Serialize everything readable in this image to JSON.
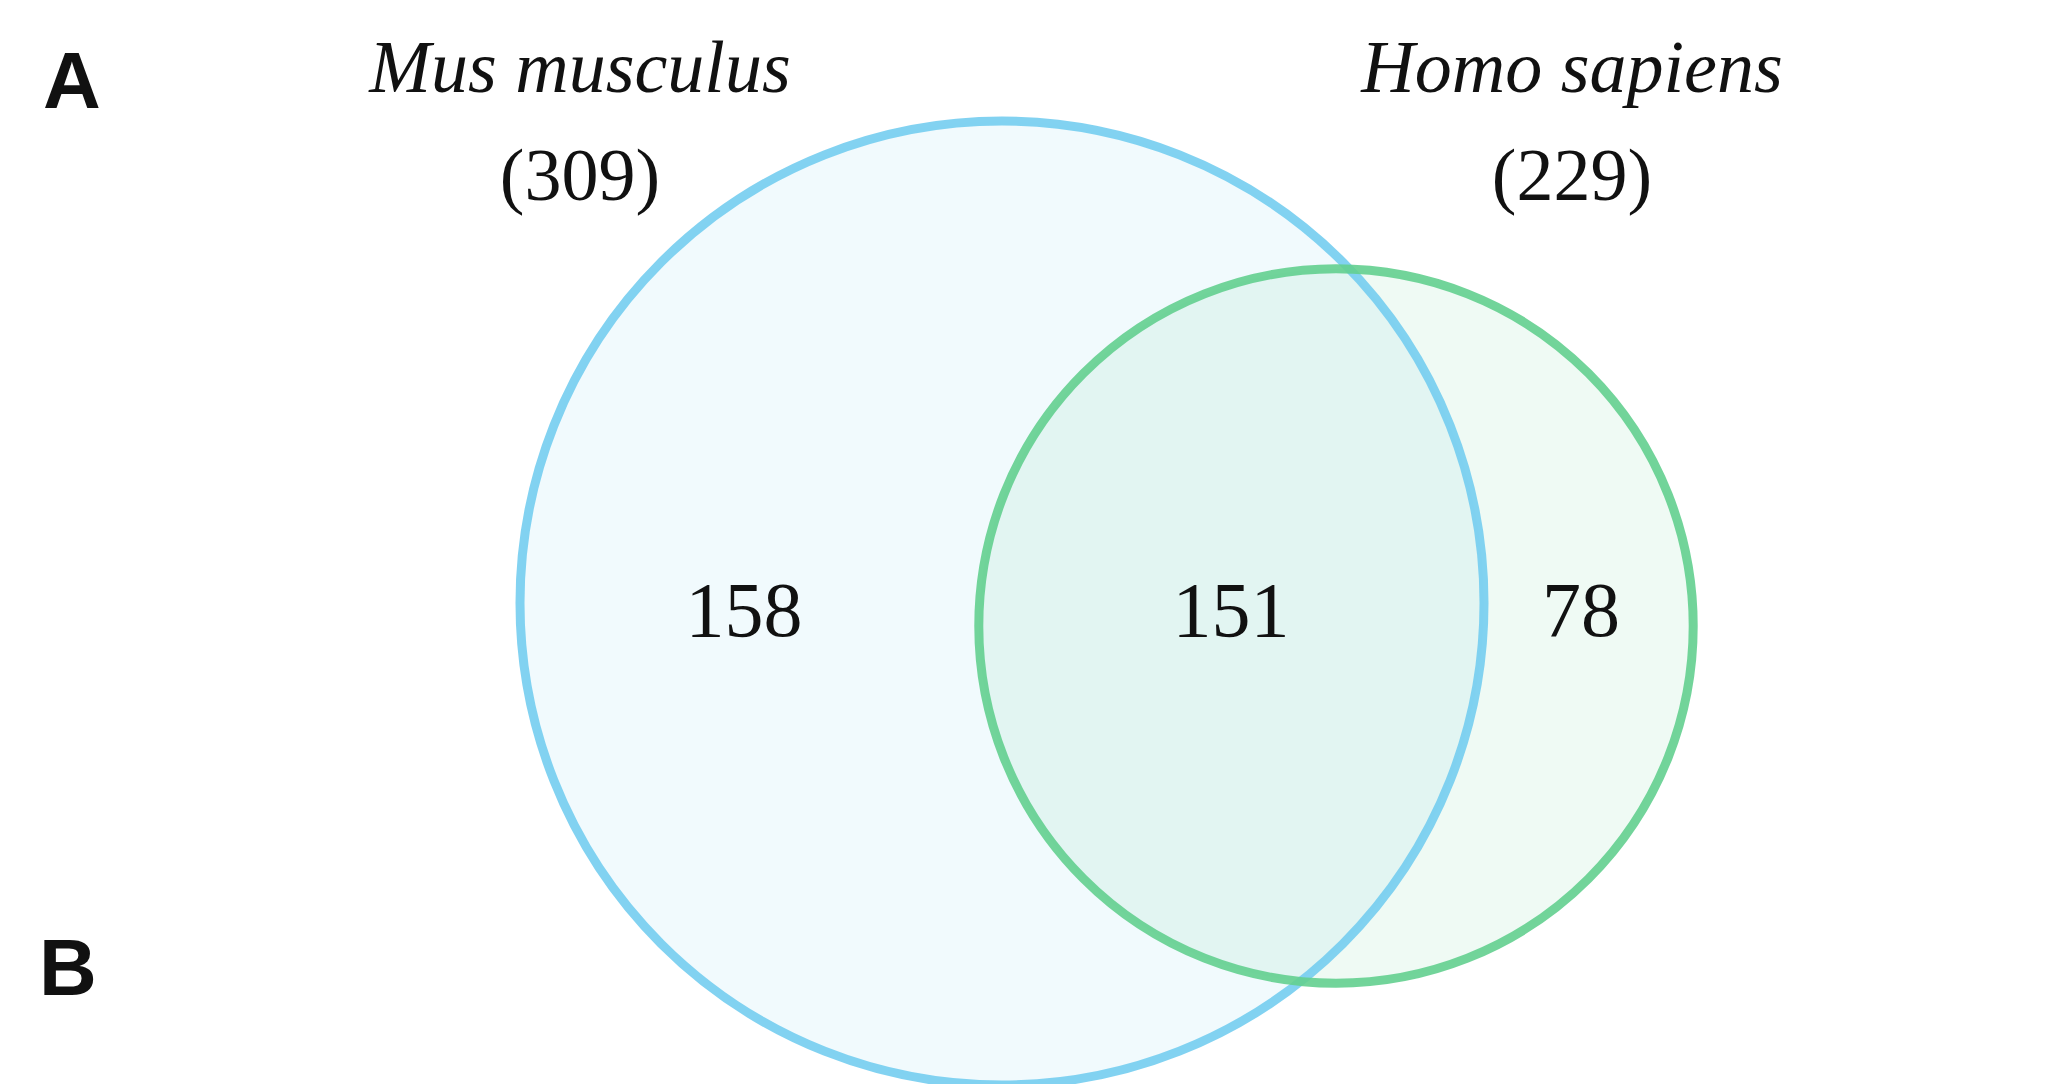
{
  "chart_data": {
    "type": "other",
    "categories": [
      "Mus musculus",
      "Homo sapiens"
    ],
    "values": [
      309,
      229
    ],
    "value_labels": [
      "(309)",
      "(229)"
    ],
    "colors": [
      "#74cdf0",
      "#63cf8f"
    ],
    "annotations": [
      "A",
      "B",
      "158",
      "151",
      "78"
    ]
  }
}
